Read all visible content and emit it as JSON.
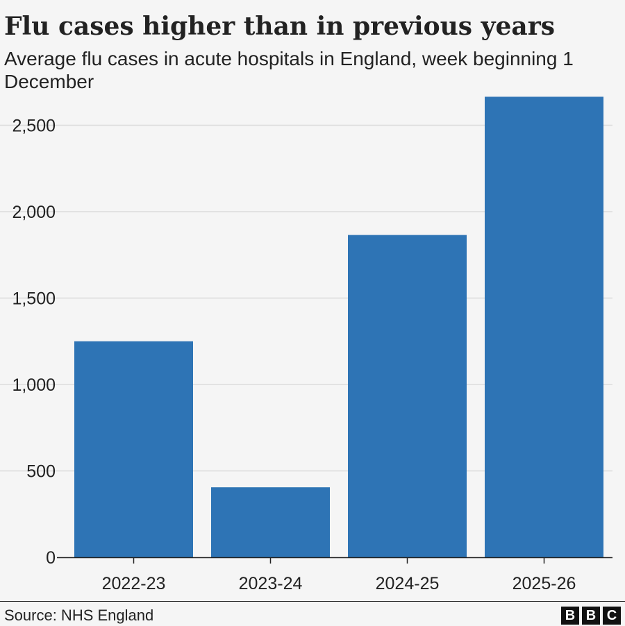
{
  "chart_data": {
    "type": "bar",
    "title": "Flu cases higher than in previous years",
    "subtitle": "Average flu cases in acute hospitals in England, week beginning 1 December",
    "categories": [
      "2022-23",
      "2023-24",
      "2024-25",
      "2025-26"
    ],
    "values": [
      1250,
      405,
      1865,
      2665
    ],
    "series": [
      {
        "values": [
          1250,
          405,
          1865,
          2665
        ],
        "color": "#2e74b5"
      }
    ],
    "yticks": [
      0,
      500,
      1000,
      1500,
      2000,
      2500
    ],
    "ytick_labels": [
      "0",
      "500",
      "1,000",
      "1,500",
      "2,000",
      "2,500"
    ],
    "ylim": [
      0,
      2700
    ],
    "xlabel": "",
    "ylabel": "",
    "grid": true,
    "legend": "none"
  },
  "footer": {
    "source": "Source: NHS England",
    "logo_letters": [
      "B",
      "B",
      "C"
    ]
  },
  "colors": {
    "bar": "#2e74b5",
    "background": "#f5f5f5",
    "grid": "#dcdcdc",
    "text": "#222222"
  }
}
